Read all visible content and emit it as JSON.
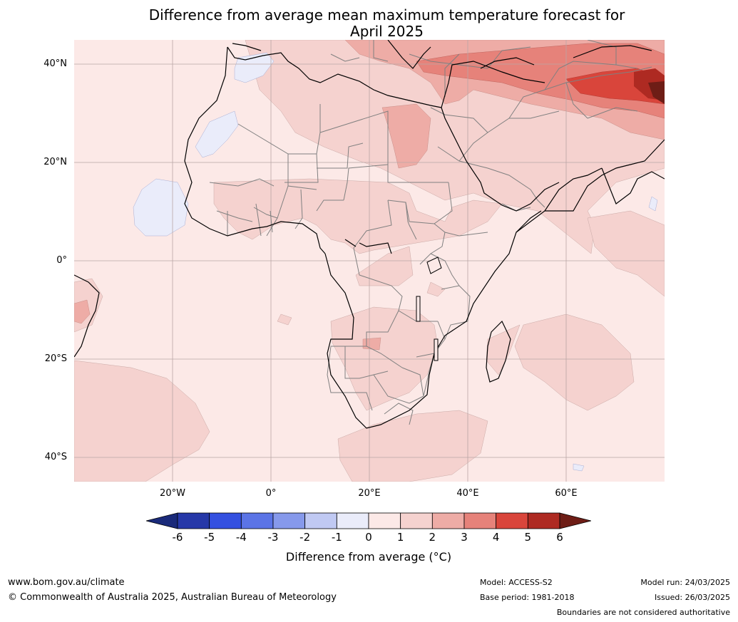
{
  "title": {
    "line1": "Difference from average mean maximum temperature forecast for",
    "line2": "April 2025"
  },
  "map": {
    "lat_labels": [
      "40°N",
      "20°N",
      "0°",
      "20°S",
      "40°S"
    ],
    "lon_labels": [
      "20°W",
      "0°",
      "20°E",
      "40°E",
      "60°E"
    ],
    "background_color": "#fce9e7"
  },
  "legend": {
    "ticks": [
      "-6",
      "-5",
      "-4",
      "-3",
      "-2",
      "-1",
      "0",
      "1",
      "2",
      "3",
      "4",
      "5",
      "6"
    ],
    "colors": [
      "#1a2a7a",
      "#2638a8",
      "#3450e0",
      "#5b74e6",
      "#8699eb",
      "#c0c9f3",
      "#eaecfa",
      "#fce9e7",
      "#f5d2cf",
      "#eeaca6",
      "#e6827a",
      "#d9453b",
      "#ae2a22",
      "#6e1d16"
    ],
    "label": "Difference from average (°C)"
  },
  "footer": {
    "website": "www.bom.gov.au/climate",
    "copyright": "© Commonwealth of Australia 2025, Australian Bureau of Meteorology",
    "model": "Model: ACCESS-S2",
    "base_period": "Base period: 1981-2018",
    "model_run": "Model run: 24/03/2025",
    "issued": "Issued: 26/03/2025",
    "disclaimer": "Boundaries are not considered authoritative"
  }
}
